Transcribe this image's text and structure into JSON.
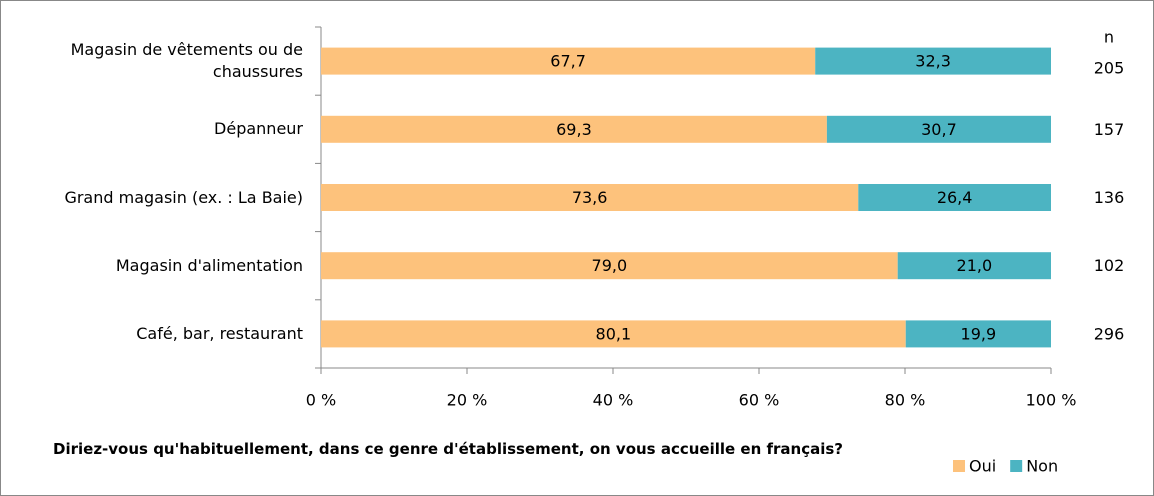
{
  "chart_data": {
    "type": "stacked_barh",
    "title": "Diriez-vous qu'habituellement, dans ce genre d'établissement, on vous accueille en français?",
    "categories": [
      "Magasin de vêtements ou de chaussures",
      "Dépanneur",
      "Grand magasin (ex. : La Baie)",
      "Magasin d'alimentation",
      "Café, bar, restaurant"
    ],
    "series": [
      {
        "name": "Oui",
        "color": "#fdc27c",
        "values": [
          67.7,
          69.3,
          73.6,
          79.0,
          80.1
        ],
        "value_labels": [
          "67,7",
          "69,3",
          "73,6",
          "79,0",
          "80,1"
        ]
      },
      {
        "name": "Non",
        "color": "#4cb4c2",
        "values": [
          32.3,
          30.7,
          26.4,
          21.0,
          19.9
        ],
        "value_labels": [
          "32,3",
          "30,7",
          "26,4",
          "21,0",
          "19,9"
        ]
      }
    ],
    "n_label": "n",
    "n_values": [
      205,
      157,
      136,
      102,
      296
    ],
    "xlim": [
      0,
      100
    ],
    "xticks": [
      {
        "value": 0,
        "label": "0 %"
      },
      {
        "value": 20,
        "label": "20 %"
      },
      {
        "value": 40,
        "label": "40 %"
      },
      {
        "value": 60,
        "label": "60 %"
      },
      {
        "value": 80,
        "label": "80 %"
      },
      {
        "value": 100,
        "label": "100 %"
      }
    ],
    "legend": "bottom-right"
  }
}
